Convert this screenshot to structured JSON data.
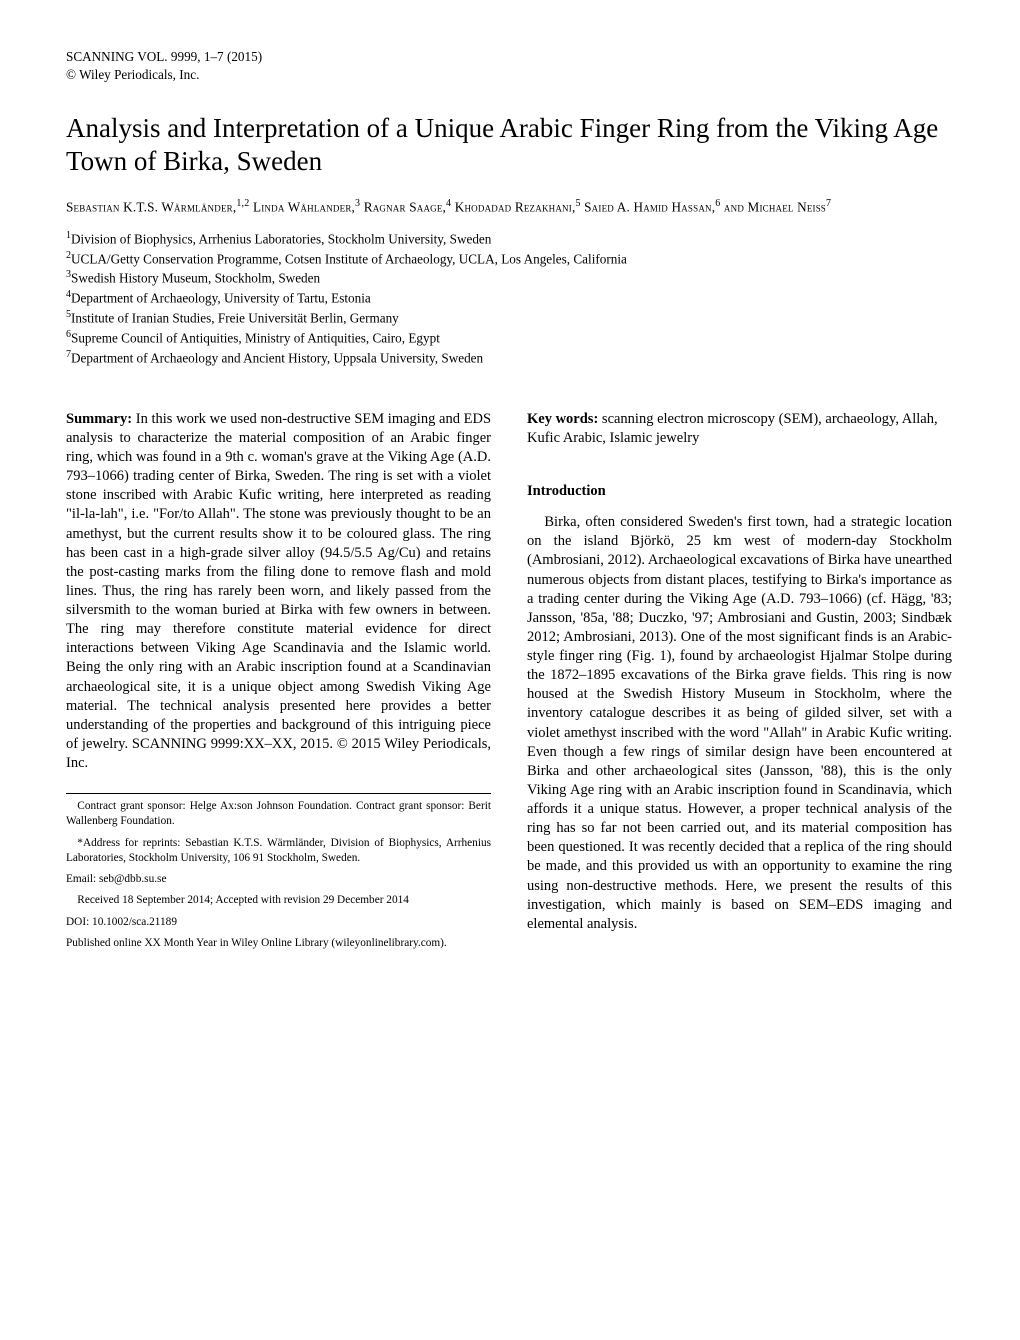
{
  "journal": {
    "line1": "SCANNING VOL. 9999, 1–7 (2015)",
    "line2": "© Wiley Periodicals, Inc."
  },
  "title": "Analysis and Interpretation of a Unique Arabic Finger Ring from the Viking Age Town of Birka, Sweden",
  "authors_html": "Sebastian K.T.S. Wärmländer,<sup>1,2</sup> Linda Wåhlander,<sup>3</sup> Ragnar Saage,<sup>4</sup> Khodadad Rezakhani,<sup>5</sup> Saied A. Hamid Hassan,<sup>6</sup> and Michael Neiß<sup>7</sup>",
  "affiliations": [
    {
      "n": "1",
      "text": "Division of Biophysics, Arrhenius Laboratories, Stockholm University, Sweden"
    },
    {
      "n": "2",
      "text": "UCLA/Getty Conservation Programme, Cotsen Institute of Archaeology, UCLA, Los Angeles, California"
    },
    {
      "n": "3",
      "text": "Swedish History Museum, Stockholm, Sweden"
    },
    {
      "n": "4",
      "text": "Department of Archaeology, University of Tartu, Estonia"
    },
    {
      "n": "5",
      "text": "Institute of Iranian Studies, Freie Universität Berlin, Germany"
    },
    {
      "n": "6",
      "text": "Supreme Council of Antiquities, Ministry of Antiquities, Cairo, Egypt"
    },
    {
      "n": "7",
      "text": "Department of Archaeology and Ancient History, Uppsala University, Sweden"
    }
  ],
  "summary": {
    "label": "Summary:",
    "text": "In this work we used non-destructive SEM imaging and EDS analysis to characterize the material composition of an Arabic finger ring, which was found in a 9th c. woman's grave at the Viking Age (A.D. 793–1066) trading center of Birka, Sweden. The ring is set with a violet stone inscribed with Arabic Kufic writing, here interpreted as reading \"il-la-lah\", i.e. \"For/to Allah\". The stone was previously thought to be an amethyst, but the current results show it to be coloured glass. The ring has been cast in a high-grade silver alloy (94.5/5.5 Ag/Cu) and retains the post-casting marks from the filing done to remove flash and mold lines. Thus, the ring has rarely been worn, and likely passed from the silversmith to the woman buried at Birka with few owners in between. The ring may therefore constitute material evidence for direct interactions between Viking Age Scandinavia and the Islamic world. Being the only ring with an Arabic inscription found at a Scandinavian archaeological site, it is a unique object among Swedish Viking Age material. The technical analysis presented here provides a better understanding of the properties and background of this intriguing piece of jewelry. SCANNING 9999:XX–XX, 2015. © 2015 Wiley Periodicals, Inc."
  },
  "keywords": {
    "label": "Key words:",
    "text": "scanning electron microscopy (SEM), archaeology, Allah, Kufic Arabic, Islamic jewelry"
  },
  "introduction": {
    "heading": "Introduction",
    "text": "Birka, often considered Sweden's first town, had a strategic location on the island Björkö, 25 km west of modern-day Stockholm (Ambrosiani, 2012). Archaeological excavations of Birka have unearthed numerous objects from distant places, testifying to Birka's importance as a trading center during the Viking Age (A.D. 793–1066) (cf. Hägg, '83; Jansson, '85a, '88; Duczko, '97; Ambrosiani and Gustin, 2003; Sindbæk 2012; Ambrosiani, 2013). One of the most significant finds is an Arabic-style finger ring (Fig. 1), found by archaeologist Hjalmar Stolpe during the 1872–1895 excavations of the Birka grave fields. This ring is now housed at the Swedish History Museum in Stockholm, where the inventory catalogue describes it as being of gilded silver, set with a violet amethyst inscribed with the word \"Allah\" in Arabic Kufic writing. Even though a few rings of similar design have been encountered at Birka and other archaeological sites (Jansson, '88), this is the only Viking Age ring with an Arabic inscription found in Scandinavia, which affords it a unique status. However, a proper technical analysis of the ring has so far not been carried out, and its material composition has been questioned. It was recently decided that a replica of the ring should be made, and this provided us with an opportunity to examine the ring using non-destructive methods. Here, we present the results of this investigation, which mainly is based on SEM–EDS imaging and elemental analysis."
  },
  "footer": {
    "grant": "Contract grant sponsor: Helge Ax:son Johnson Foundation. Contract grant sponsor: Berit Wallenberg Foundation.",
    "reprint": "*Address for reprints: Sebastian K.T.S. Wärmländer, Division of Biophysics, Arrhenius Laboratories, Stockholm University, 106 91 Stockholm, Sweden.",
    "email": "Email: seb@dbb.su.se",
    "received": "Received 18 September 2014; Accepted with revision 29 December 2014",
    "doi": "DOI: 10.1002/sca.21189",
    "published": "Published online XX Month Year in Wiley Online Library (wileyonlinelibrary.com)."
  }
}
